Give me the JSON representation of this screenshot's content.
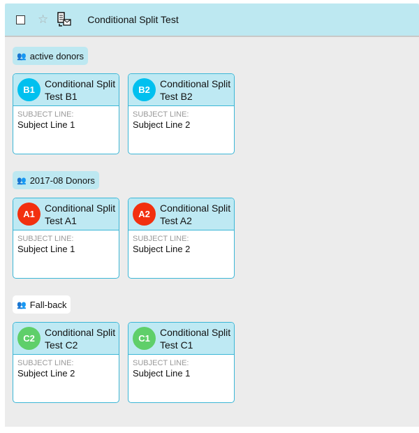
{
  "header": {
    "title": "Conditional Split Test",
    "icons": [
      "checkbox",
      "star-icon",
      "mail-merge-icon"
    ]
  },
  "colors": {
    "blue": "#00c0ef",
    "red": "#f2300f",
    "green": "#5fcf6a",
    "header_bg": "#bde8f1"
  },
  "groups": [
    {
      "label": "active donors",
      "highlighted": true,
      "cards": [
        {
          "badge": "B1",
          "color": "blue",
          "name": "Conditional Split Test B1",
          "subject_label": "SUBJECT LINE:",
          "subject": "Subject Line 1"
        },
        {
          "badge": "B2",
          "color": "blue",
          "name": "Conditional Split Test B2",
          "subject_label": "SUBJECT LINE:",
          "subject": "Subject Line 2"
        }
      ]
    },
    {
      "label": "2017-08 Donors",
      "highlighted": true,
      "cards": [
        {
          "badge": "A1",
          "color": "red",
          "name": "Conditional Split Test A1",
          "subject_label": "SUBJECT LINE:",
          "subject": "Subject Line 1"
        },
        {
          "badge": "A2",
          "color": "red",
          "name": "Conditional Split Test A2",
          "subject_label": "SUBJECT LINE:",
          "subject": "Subject Line 2"
        }
      ]
    },
    {
      "label": "Fall-back",
      "highlighted": false,
      "cards": [
        {
          "badge": "C2",
          "color": "green",
          "name": "Conditional Split Test C2",
          "subject_label": "SUBJECT LINE:",
          "subject": "Subject Line 2"
        },
        {
          "badge": "C1",
          "color": "green",
          "name": "Conditional Split Test C1",
          "subject_label": "SUBJECT LINE:",
          "subject": "Subject Line 1"
        }
      ]
    }
  ]
}
